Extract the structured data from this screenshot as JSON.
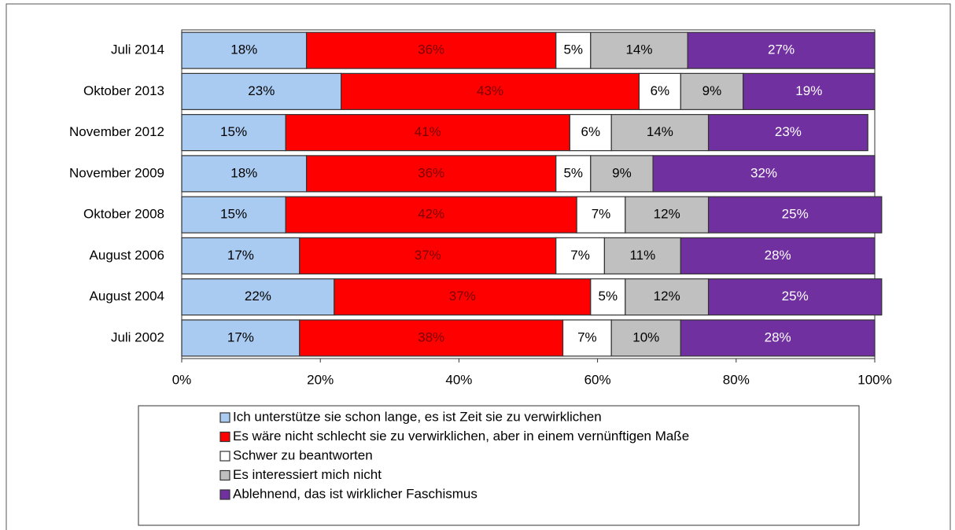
{
  "chart_data": {
    "type": "stacked-bar",
    "orientation": "horizontal",
    "categories": [
      "Juli 2014",
      "Oktober 2013",
      "November 2012",
      "November 2009",
      "Oktober 2008",
      "August 2006",
      "August 2004",
      "Juli 2002"
    ],
    "series": [
      {
        "name": "Ich unterstütze sie schon lange, es ist Zeit sie zu verwirklichen",
        "color": "#a9cbf1",
        "label_color": "#000000",
        "values": [
          18,
          23,
          15,
          18,
          15,
          17,
          22,
          17
        ],
        "value_labels": [
          "18%",
          "23%",
          "15%",
          "18%",
          "15%",
          "17%",
          "22%",
          "17%"
        ]
      },
      {
        "name": "Es wäre nicht schlecht sie zu verwirklichen, aber in einem vernünftigen Maße",
        "color": "#ff0000",
        "label_color": "#7a0000",
        "values": [
          36,
          43,
          41,
          36,
          42,
          37,
          37,
          38
        ],
        "value_labels": [
          "36%",
          "43%",
          "41%",
          "36%",
          "42%",
          "37%",
          "37%",
          "38%"
        ]
      },
      {
        "name": "Schwer zu beantworten",
        "color": "#ffffff",
        "label_color": "#000000",
        "values": [
          5,
          6,
          6,
          5,
          7,
          7,
          5,
          7
        ],
        "value_labels": [
          "5%",
          "6%",
          "6%",
          "5%",
          "7%",
          "7%",
          "5%",
          "7%"
        ]
      },
      {
        "name": "Es interessiert mich nicht",
        "color": "#c0c0c0",
        "label_color": "#000000",
        "values": [
          14,
          9,
          14,
          9,
          12,
          11,
          12,
          10
        ],
        "value_labels": [
          "14%",
          "9%",
          "14%",
          "9%",
          "12%",
          "11%",
          "12%",
          "10%"
        ]
      },
      {
        "name": "Ablehnend, das ist wirklicher Faschismus",
        "color": "#7030a0",
        "label_color": "#ffffff",
        "values": [
          27,
          19,
          23,
          32,
          25,
          28,
          25,
          28
        ],
        "value_labels": [
          "27%",
          "19%",
          "23%",
          "32%",
          "25%",
          "28%",
          "25%",
          "28%"
        ]
      }
    ],
    "xlim": [
      0,
      100
    ],
    "xticks": [
      {
        "value": 0,
        "label": "0%"
      },
      {
        "value": 20,
        "label": "20%"
      },
      {
        "value": 40,
        "label": "40%"
      },
      {
        "value": 60,
        "label": "60%"
      },
      {
        "value": 80,
        "label": "80%"
      },
      {
        "value": 100,
        "label": "100%"
      }
    ],
    "grid": false
  }
}
